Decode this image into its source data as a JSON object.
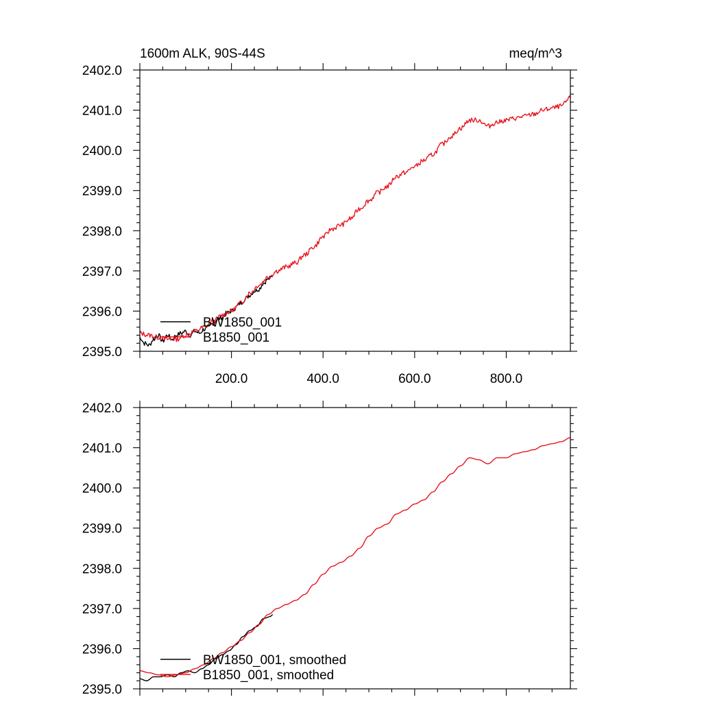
{
  "colors": {
    "series_bw1850": "#000000",
    "series_b1850": "#e8141e",
    "background": "#ffffff"
  },
  "chart_data": [
    {
      "type": "line",
      "title_left": "1600m ALK, 90S-44S",
      "title_right": "meq/m^3",
      "xlabel": "",
      "ylabel": "",
      "xlim": [
        0,
        940
      ],
      "ylim": [
        2395.0,
        2402.0
      ],
      "x_ticks": [
        200,
        400,
        600,
        800
      ],
      "x_tick_labels": [
        "200.0",
        "400.0",
        "600.0",
        "800.0"
      ],
      "x_tick_labels_shown": true,
      "y_ticks": [
        2395,
        2396,
        2397,
        2398,
        2399,
        2400,
        2401,
        2402
      ],
      "y_tick_labels": [
        "2395.0",
        "2396.0",
        "2397.0",
        "2398.0",
        "2399.0",
        "2400.0",
        "2401.0",
        "2402.0"
      ],
      "legend": [
        "BW1850_001",
        "B1850_001"
      ],
      "legend_position": "bottom-left",
      "series": [
        {
          "name": "BW1850_001",
          "color": "#000000",
          "noise": 0.06,
          "seed": 7,
          "x": [
            0,
            10,
            20,
            30,
            40,
            50,
            60,
            70,
            80,
            90,
            100,
            110,
            120,
            130,
            140,
            150,
            160,
            170,
            180,
            190,
            200,
            210,
            220,
            230,
            240,
            250,
            260,
            270,
            280,
            290
          ],
          "y": [
            2395.35,
            2395.2,
            2395.15,
            2395.3,
            2395.4,
            2395.25,
            2395.4,
            2395.3,
            2395.4,
            2395.45,
            2395.5,
            2395.4,
            2395.5,
            2395.45,
            2395.55,
            2395.6,
            2395.7,
            2395.8,
            2395.85,
            2395.95,
            2396.0,
            2396.1,
            2396.2,
            2396.3,
            2396.4,
            2396.5,
            2396.55,
            2396.7,
            2396.8,
            2396.85
          ]
        },
        {
          "name": "B1850_001",
          "color": "#e8141e",
          "noise": 0.06,
          "seed": 13,
          "x": [
            0,
            20,
            40,
            60,
            80,
            100,
            120,
            140,
            160,
            180,
            200,
            220,
            240,
            260,
            280,
            300,
            320,
            340,
            360,
            380,
            400,
            420,
            440,
            460,
            480,
            500,
            520,
            540,
            560,
            580,
            600,
            620,
            640,
            660,
            680,
            700,
            720,
            740,
            760,
            780,
            800,
            820,
            840,
            860,
            880,
            900,
            920,
            940
          ],
          "y": [
            2395.45,
            2395.4,
            2395.35,
            2395.3,
            2395.3,
            2395.4,
            2395.5,
            2395.6,
            2395.75,
            2395.9,
            2396.0,
            2396.2,
            2396.45,
            2396.65,
            2396.85,
            2397.0,
            2397.1,
            2397.2,
            2397.4,
            2397.6,
            2397.85,
            2398.05,
            2398.15,
            2398.3,
            2398.55,
            2398.75,
            2398.95,
            2399.1,
            2399.35,
            2399.45,
            2399.6,
            2399.75,
            2399.9,
            2400.15,
            2400.35,
            2400.55,
            2400.75,
            2400.75,
            2400.6,
            2400.7,
            2400.75,
            2400.8,
            2400.85,
            2400.9,
            2401.0,
            2401.05,
            2401.1,
            2401.3
          ]
        }
      ]
    },
    {
      "type": "line",
      "title_left": "",
      "title_right": "",
      "xlabel": "",
      "ylabel": "",
      "xlim": [
        0,
        940
      ],
      "ylim": [
        2395.0,
        2402.0
      ],
      "x_ticks": [
        200,
        400,
        600,
        800
      ],
      "x_tick_labels_shown": false,
      "y_ticks": [
        2395,
        2396,
        2397,
        2398,
        2399,
        2400,
        2401,
        2402
      ],
      "y_tick_labels": [
        "2395.0",
        "2396.0",
        "2397.0",
        "2398.0",
        "2399.0",
        "2400.0",
        "2401.0",
        "2402.0"
      ],
      "legend": [
        "BW1850_001, smoothed",
        "B1850_001, smoothed"
      ],
      "legend_position": "bottom-left",
      "series": [
        {
          "name": "BW1850_001, smoothed",
          "color": "#000000",
          "noise": 0,
          "seed": 3,
          "x": [
            0,
            15,
            30,
            45,
            60,
            75,
            90,
            105,
            120,
            135,
            150,
            165,
            180,
            195,
            210,
            225,
            240,
            255,
            270,
            285,
            290
          ],
          "y": [
            2395.25,
            2395.2,
            2395.3,
            2395.3,
            2395.35,
            2395.3,
            2395.4,
            2395.45,
            2395.4,
            2395.5,
            2395.6,
            2395.75,
            2395.85,
            2395.95,
            2396.1,
            2396.3,
            2396.45,
            2396.55,
            2396.75,
            2396.8,
            2396.85
          ]
        },
        {
          "name": "B1850_001, smoothed",
          "color": "#e8141e",
          "noise": 0,
          "seed": 5,
          "x": [
            0,
            20,
            40,
            60,
            80,
            100,
            120,
            140,
            160,
            180,
            200,
            220,
            240,
            260,
            280,
            300,
            320,
            340,
            360,
            380,
            400,
            420,
            440,
            460,
            480,
            500,
            520,
            540,
            560,
            580,
            600,
            620,
            640,
            660,
            680,
            700,
            720,
            740,
            760,
            780,
            800,
            820,
            840,
            860,
            880,
            900,
            920,
            940
          ],
          "y": [
            2395.45,
            2395.4,
            2395.35,
            2395.3,
            2395.35,
            2395.4,
            2395.5,
            2395.6,
            2395.75,
            2395.9,
            2396.05,
            2396.2,
            2396.4,
            2396.6,
            2396.85,
            2397.0,
            2397.1,
            2397.2,
            2397.35,
            2397.6,
            2397.85,
            2398.05,
            2398.15,
            2398.3,
            2398.5,
            2398.8,
            2399.0,
            2399.1,
            2399.35,
            2399.45,
            2399.6,
            2399.7,
            2399.9,
            2400.15,
            2400.35,
            2400.55,
            2400.75,
            2400.7,
            2400.6,
            2400.75,
            2400.75,
            2400.85,
            2400.9,
            2400.95,
            2401.05,
            2401.1,
            2401.15,
            2401.25
          ]
        }
      ]
    }
  ]
}
